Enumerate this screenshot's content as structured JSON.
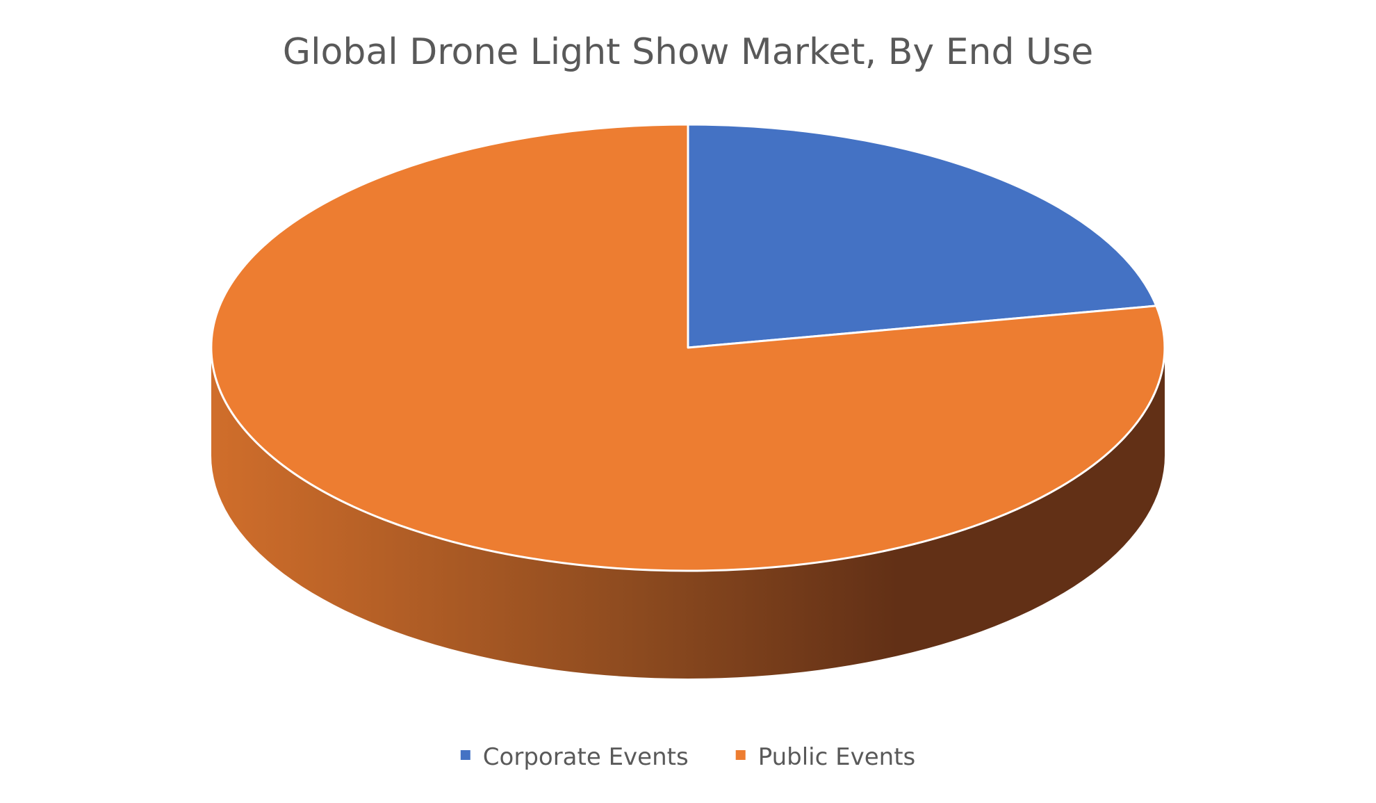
{
  "chart_data": {
    "type": "pie",
    "title": "Global Drone Light Show Market, By End Use",
    "style": "3d",
    "legend_position": "bottom",
    "slices": [
      {
        "label": "Corporate Events",
        "value": 22,
        "color": "#4472C4"
      },
      {
        "label": "Public Events",
        "value": 78,
        "color": "#ED7D31"
      }
    ]
  }
}
